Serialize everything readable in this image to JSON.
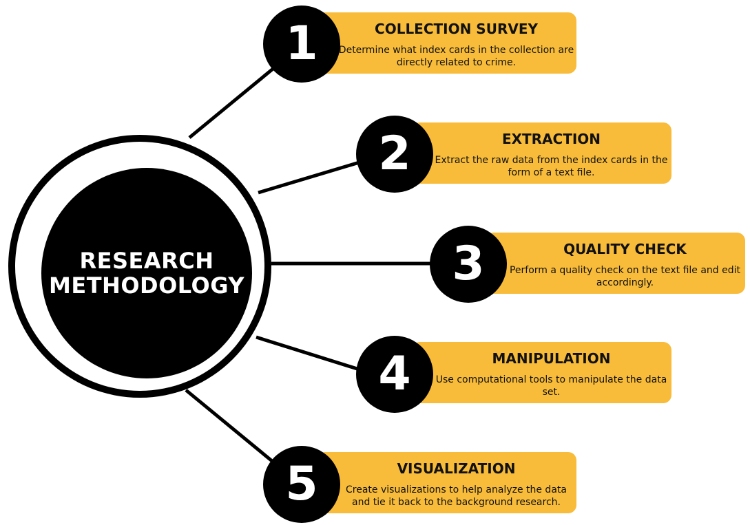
{
  "center": {
    "line1": "RESEARCH",
    "line2": "METHODOLOGY"
  },
  "steps": [
    {
      "number": "1",
      "title": "COLLECTION SURVEY",
      "description": "Determine what index cards in the collection are directly related to crime."
    },
    {
      "number": "2",
      "title": "EXTRACTION",
      "description": "Extract the raw data from the index cards in the form of a text file."
    },
    {
      "number": "3",
      "title": "QUALITY CHECK",
      "description": "Perform a quality check on the text file and edit accordingly."
    },
    {
      "number": "4",
      "title": "MANIPULATION",
      "description": "Use computational tools to manipulate the data set."
    },
    {
      "number": "5",
      "title": "VISUALIZATION",
      "description": "Create visualizations to help analyze the data and tie it back to the background research."
    }
  ],
  "colors": {
    "card": "#f8bc3a",
    "circle": "#000000",
    "background": "#ffffff"
  }
}
